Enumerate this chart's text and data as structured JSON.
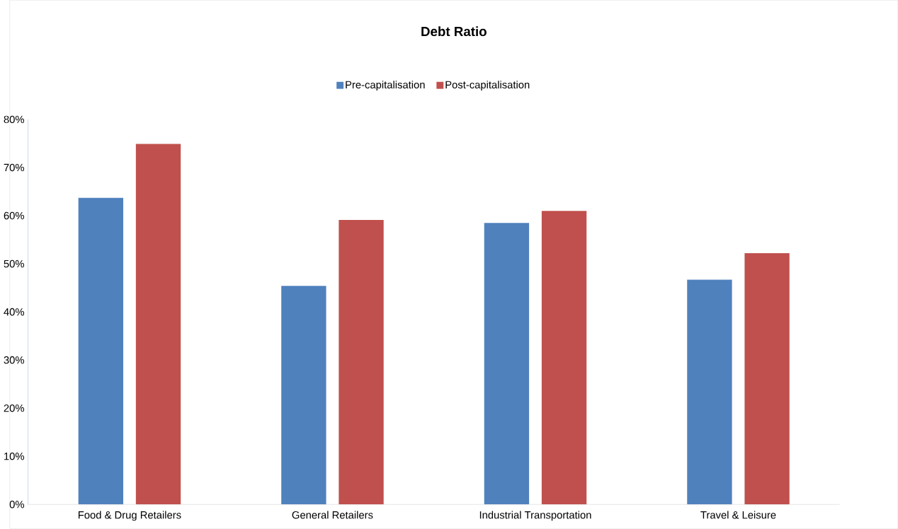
{
  "chart_data": {
    "type": "bar",
    "title": "Debt Ratio",
    "categories": [
      "Food & Drug Retailers",
      "General Retailers",
      "Industrial Transportation",
      "Travel & Leisure"
    ],
    "series": [
      {
        "name": "Pre-capitalisation",
        "color": "#4f81bd",
        "values": [
          63.7,
          45.4,
          58.5,
          46.7
        ]
      },
      {
        "name": "Post-capitalisation",
        "color": "#c0504d",
        "values": [
          74.9,
          59.1,
          61.0,
          52.2
        ]
      }
    ],
    "ylim": [
      0,
      80
    ],
    "yticks": [
      {
        "value": 0,
        "label": "0%"
      },
      {
        "value": 10,
        "label": "10%"
      },
      {
        "value": 20,
        "label": "20%"
      },
      {
        "value": 30,
        "label": "30%"
      },
      {
        "value": 40,
        "label": "40%"
      },
      {
        "value": 50,
        "label": "50%"
      },
      {
        "value": 60,
        "label": "60%"
      },
      {
        "value": 70,
        "label": "70%"
      },
      {
        "value": 80,
        "label": "80%"
      }
    ],
    "legend": "top"
  }
}
